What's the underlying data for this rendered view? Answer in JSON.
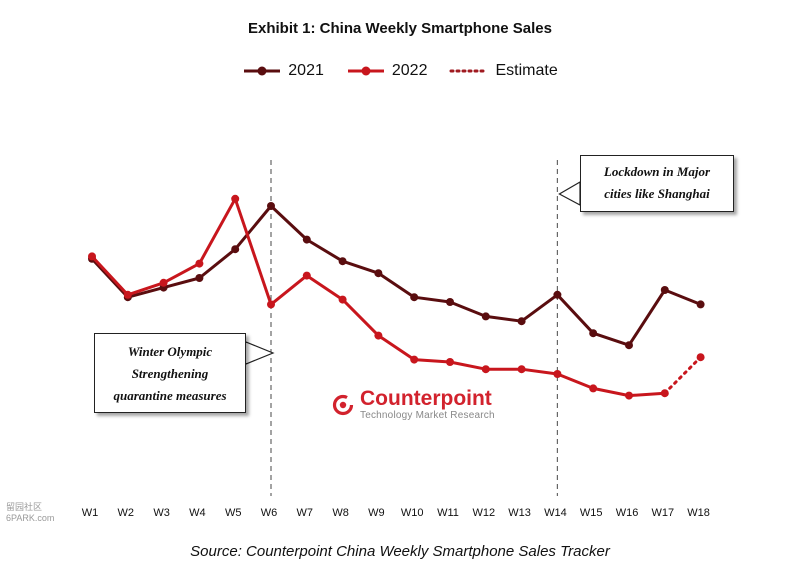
{
  "chart_data": {
    "type": "line",
    "title": "Exhibit 1: China Weekly Smartphone Sales",
    "categories": [
      "W1",
      "W2",
      "W3",
      "W4",
      "W5",
      "W6",
      "W7",
      "W8",
      "W9",
      "W10",
      "W11",
      "W12",
      "W13",
      "W14",
      "W15",
      "W16",
      "W17",
      "W18"
    ],
    "series": [
      {
        "name": "2021",
        "color": "#5a0d0f",
        "values": [
          88,
          72,
          76,
          80,
          92,
          110,
          96,
          87,
          82,
          72,
          70,
          64,
          62,
          73,
          57,
          52,
          75,
          69
        ]
      },
      {
        "name": "2022",
        "color": "#c8161d",
        "values": [
          89,
          73,
          78,
          86,
          113,
          69,
          81,
          71,
          56,
          46,
          45,
          42,
          42,
          40,
          34,
          31,
          32,
          47
        ],
        "estimate_from_index": 16
      }
    ],
    "legend": [
      {
        "label": "2021",
        "style": "solid"
      },
      {
        "label": "2022",
        "style": "solid"
      },
      {
        "label": "Estimate",
        "style": "dotted"
      }
    ],
    "legend_position": "top-center",
    "vertical_markers": [
      "W6",
      "W14"
    ],
    "annotations": [
      {
        "lines": [
          "Winter Olympic",
          "Strengthening",
          "quarantine measures"
        ],
        "at": "W6"
      },
      {
        "lines": [
          "Lockdown in Major",
          "cities like Shanghai"
        ],
        "at": "W14"
      }
    ],
    "ylim": [
      0,
      130
    ],
    "grid": false,
    "y_axis_visible": false
  },
  "logo": {
    "brand": "Counterpoint",
    "tagline": "Technology Market Research"
  },
  "source": "Source: Counterpoint China Weekly Smartphone Sales Tracker",
  "watermark": {
    "line1": "留园社区",
    "line2": "6PARK.com"
  }
}
